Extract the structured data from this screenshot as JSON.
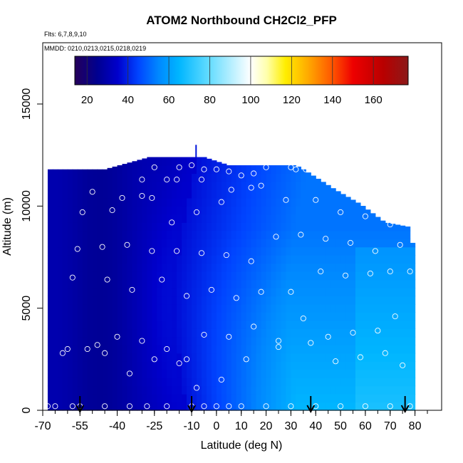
{
  "chart_data": {
    "type": "heatmap",
    "title": "ATOM2 Northbound CH2Cl2_PFP",
    "flights_label": "Flts: 6,7,8,9,10",
    "dates_label": "MMDD: 0210,0213,0215,0218,0219",
    "xlabel": "Latitude (deg N)",
    "ylabel": "Altitude (m)",
    "xlim": [
      -70,
      85
    ],
    "ylim": [
      0,
      17500
    ],
    "xticks": [
      -70,
      -55,
      -40,
      -25,
      -10,
      0,
      10,
      20,
      30,
      40,
      50,
      60,
      70,
      80
    ],
    "xtick_labels": [
      "-70",
      "-55",
      "-40",
      "-25",
      "-10",
      "0",
      "10",
      "20",
      "30",
      "40",
      "50",
      "60",
      "70",
      "80"
    ],
    "yticks": [
      0,
      5000,
      10000,
      15000
    ],
    "ytick_labels": [
      "0",
      "5000",
      "10000",
      "15000"
    ],
    "colorbar": {
      "range": [
        14,
        177
      ],
      "ticks": [
        20,
        40,
        60,
        80,
        100,
        120,
        140,
        160
      ],
      "tick_labels": [
        "20",
        "40",
        "60",
        "80",
        "100",
        "120",
        "140",
        "160"
      ],
      "colors": [
        "#25005a",
        "#000090",
        "#0000cc",
        "#0044ff",
        "#0088ff",
        "#00b6ff",
        "#66ddff",
        "#ffffff",
        "#ffffaa",
        "#ffee00",
        "#ffaa00",
        "#ff5500",
        "#ee0000",
        "#b80000",
        "#8b1a1a"
      ],
      "stops": [
        14,
        25,
        35,
        45,
        55,
        65,
        80,
        100,
        108,
        117,
        128,
        140,
        150,
        165,
        177
      ]
    },
    "field_extent": {
      "lat": [
        -68,
        80
      ],
      "alt_top": [
        [
          -68,
          10500
        ],
        [
          -67,
          11800
        ],
        [
          -45,
          11800
        ],
        [
          -27,
          12400
        ],
        [
          -5,
          12400
        ],
        [
          0,
          12200
        ],
        [
          5,
          12000
        ],
        [
          32,
          12000
        ],
        [
          35,
          11800
        ],
        [
          48,
          10800
        ],
        [
          58,
          10100
        ],
        [
          68,
          9200
        ],
        [
          77,
          9000
        ],
        [
          79,
          8200
        ],
        [
          80,
          7200
        ],
        [
          80,
          0
        ]
      ]
    },
    "field_model": {
      "description": "CH2Cl2 mixing ratio vs latitude and altitude",
      "south_value": 28,
      "minimum_band": {
        "value": 37,
        "lat_surface": -12,
        "lat_top": -8
      },
      "north_surface_value": 65,
      "north_upper_value": 52
    },
    "samples": {
      "lat": [
        -68,
        -65,
        -58,
        -55,
        -45,
        -35,
        -28,
        -20,
        -10,
        -5,
        0,
        5,
        10,
        20,
        30,
        40,
        50,
        60,
        70,
        78,
        -62,
        -52,
        -45,
        -35,
        -25,
        -15,
        -8,
        2,
        12,
        25,
        38,
        48,
        58,
        68,
        75,
        -60,
        -48,
        -40,
        -30,
        -20,
        -12,
        -5,
        5,
        15,
        25,
        35,
        45,
        55,
        65,
        72,
        -58,
        -44,
        -34,
        -22,
        -12,
        -2,
        8,
        18,
        30,
        42,
        52,
        62,
        70,
        78,
        -56,
        -46,
        -36,
        -26,
        -16,
        -6,
        4,
        14,
        24,
        34,
        44,
        54,
        64,
        74,
        -54,
        -42,
        -30,
        -18,
        -8,
        2,
        14,
        28,
        40,
        50,
        60,
        70,
        -50,
        -38,
        -26,
        -16,
        -6,
        6,
        18,
        32,
        44,
        56,
        66,
        76,
        -30,
        -20,
        -10,
        0,
        10,
        20,
        36,
        50,
        60,
        -25,
        -15,
        -5,
        5,
        15,
        30
      ],
      "alt": [
        200,
        200,
        200,
        200,
        200,
        200,
        200,
        200,
        200,
        200,
        200,
        200,
        200,
        200,
        200,
        200,
        200,
        200,
        200,
        200,
        2800,
        3000,
        2800,
        1800,
        2500,
        2300,
        1100,
        1500,
        2500,
        3100,
        3300,
        2400,
        2600,
        2800,
        2200,
        3000,
        3200,
        3600,
        3400,
        3000,
        2500,
        3700,
        3600,
        4100,
        3400,
        4500,
        3600,
        3800,
        3900,
        4600,
        6500,
        6400,
        5900,
        6400,
        5600,
        5900,
        5500,
        5800,
        5800,
        6800,
        6600,
        6700,
        6800,
        6800,
        7900,
        8000,
        8100,
        7800,
        7800,
        7700,
        7600,
        7300,
        8500,
        8600,
        8400,
        8200,
        7800,
        8100,
        9700,
        9800,
        10500,
        9200,
        9700,
        10200,
        10900,
        10300,
        10300,
        9700,
        9500,
        9100,
        10700,
        10400,
        10400,
        11300,
        11300,
        10800,
        11000,
        11800,
        11700,
        10800,
        10600,
        10100,
        11300,
        11300,
        12000,
        11800,
        11500,
        11900,
        11800,
        11900,
        10800,
        11900,
        11900,
        11800,
        11700,
        11600,
        11900
      ]
    }
  }
}
